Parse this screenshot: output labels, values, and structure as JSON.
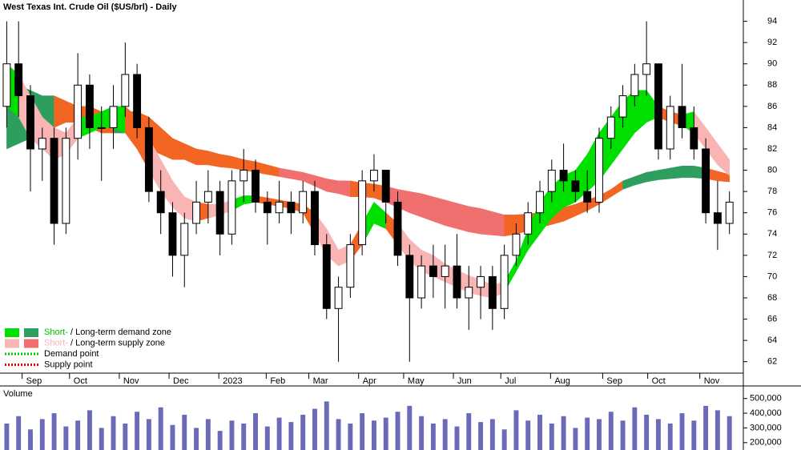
{
  "chart_data": {
    "type": "candlestick",
    "title": "West Texas Int. Crude Oil ($US/brl) - Daily",
    "volume_label": "Volume",
    "xlim": [
      0,
      312
    ],
    "xticks": [
      {
        "value": 9,
        "label": "Sep"
      },
      {
        "value": 29,
        "label": "Oct"
      },
      {
        "value": 50,
        "label": "Nov"
      },
      {
        "value": 71,
        "label": "Dec"
      },
      {
        "value": 92,
        "label": "2023"
      },
      {
        "value": 112,
        "label": "Feb"
      },
      {
        "value": 130,
        "label": "Mar"
      },
      {
        "value": 151,
        "label": "Apr"
      },
      {
        "value": 170,
        "label": "May"
      },
      {
        "value": 191,
        "label": "Jun"
      },
      {
        "value": 211,
        "label": "Jul"
      },
      {
        "value": 232,
        "label": "Aug"
      },
      {
        "value": 254,
        "label": "Sep"
      },
      {
        "value": 273,
        "label": "Oct"
      },
      {
        "value": 295,
        "label": "Nov"
      }
    ],
    "ylim": [
      61,
      96
    ],
    "yticks": [
      62,
      64,
      66,
      68,
      70,
      72,
      74,
      76,
      78,
      80,
      82,
      84,
      86,
      88,
      90,
      92,
      94
    ],
    "vlim": [
      150000,
      580000
    ],
    "vticks": [
      {
        "value": 200000,
        "label": "200,000"
      },
      {
        "value": 300000,
        "label": "300,000"
      },
      {
        "value": 400000,
        "label": "400,000"
      },
      {
        "value": 500000,
        "label": "500,000"
      }
    ],
    "up_color": "#ffffff",
    "down_color": "#000000",
    "volume_color": "#6a6ab8",
    "x": [
      2.5,
      7.5,
      12.5,
      17.5,
      22.5,
      27.5,
      32.5,
      37.5,
      42.5,
      47.5,
      52.5,
      57.5,
      62.5,
      67.5,
      72.5,
      77.5,
      82.5,
      87.5,
      92.5,
      97.5,
      102.5,
      107.5,
      112.5,
      117.5,
      122.5,
      127.5,
      132.5,
      137.5,
      142.5,
      147.5,
      152.5,
      157.5,
      162.5,
      167.5,
      172.5,
      177.5,
      182.5,
      187.5,
      192.5,
      197.5,
      202.5,
      207.5,
      212.5,
      217.5,
      222.5,
      227.5,
      232.5,
      237.5,
      242.5,
      247.5,
      252.5,
      257.5,
      262.5,
      267.5,
      272.5,
      277.5,
      282.5,
      287.5,
      292.5,
      297.5,
      302.5,
      307.5
    ],
    "open": [
      86,
      90,
      87,
      82,
      83,
      75,
      83,
      88,
      84,
      84,
      86,
      89,
      84,
      78,
      76,
      72,
      75,
      77,
      78,
      74,
      79,
      80,
      77,
      76,
      77,
      76,
      78,
      73,
      67,
      69,
      73,
      79,
      80,
      77,
      72,
      68,
      71,
      70,
      71,
      68,
      69,
      70,
      67,
      72,
      74,
      76,
      78,
      80,
      79,
      78,
      77,
      83,
      85,
      87,
      89,
      90,
      82,
      86,
      84,
      82,
      76,
      75
    ],
    "high": [
      94,
      94,
      88,
      84,
      84,
      84,
      91,
      89,
      86,
      88,
      92,
      90,
      85,
      80,
      77,
      76,
      79,
      80,
      79,
      80,
      82,
      81,
      78,
      79,
      78,
      79,
      79,
      74,
      70,
      74,
      80,
      81.5,
      80,
      78,
      73,
      72,
      73,
      73,
      74,
      71,
      71,
      71,
      73,
      75,
      77,
      79,
      81,
      82.5,
      80,
      80,
      84,
      86,
      88,
      90,
      94,
      90,
      87,
      90,
      86,
      83,
      79,
      78
    ],
    "low": [
      84,
      85,
      78,
      79,
      73,
      74,
      81,
      82,
      79,
      82,
      85,
      83,
      77,
      74,
      70,
      69,
      74,
      75,
      72,
      73,
      77,
      76,
      73,
      75,
      74,
      75,
      72,
      66,
      62,
      68,
      72,
      78,
      75,
      71,
      62,
      67,
      68,
      67,
      67,
      65,
      66,
      65,
      66,
      71,
      73,
      75,
      77,
      78,
      77,
      76,
      76,
      82,
      84,
      86,
      87,
      81,
      81,
      83,
      81,
      75,
      72.5,
      74
    ],
    "close": [
      90,
      87,
      82,
      83,
      75,
      83,
      88,
      84,
      84,
      86,
      89,
      84,
      78,
      76,
      72,
      75,
      77,
      78,
      74,
      79,
      80,
      77,
      76,
      77,
      76,
      78,
      73,
      67,
      69,
      73,
      79,
      80,
      77,
      72,
      68,
      71,
      70,
      71,
      68,
      69,
      70,
      67,
      72,
      74,
      76,
      78,
      80,
      79,
      78,
      77,
      83,
      85,
      87,
      89,
      90,
      82,
      86,
      84,
      82,
      76,
      75,
      77
    ],
    "volume": [
      330000,
      380000,
      290000,
      360000,
      400000,
      310000,
      350000,
      420000,
      300000,
      380000,
      330000,
      410000,
      360000,
      440000,
      320000,
      390000,
      300000,
      360000,
      280000,
      350000,
      330000,
      400000,
      310000,
      370000,
      340000,
      390000,
      430000,
      480000,
      360000,
      330000,
      400000,
      350000,
      370000,
      410000,
      450000,
      380000,
      330000,
      360000,
      310000,
      400000,
      340000,
      360000,
      290000,
      420000,
      350000,
      390000,
      330000,
      380000,
      300000,
      370000,
      360000,
      410000,
      350000,
      440000,
      390000,
      360000,
      330000,
      400000,
      350000,
      450000,
      420000,
      380000
    ],
    "zones": [
      {
        "upper": [
          89,
          88,
          87.5,
          87,
          87,
          86.5,
          86,
          86,
          85.5,
          85.5,
          85.5,
          85.5,
          85,
          84,
          83,
          82.5,
          82,
          81.8,
          81.5,
          81.3,
          81,
          80.8,
          80.5,
          80.2,
          80,
          79.8,
          79.5,
          79.2,
          79,
          79,
          78.8,
          78.7,
          78.5,
          78.2,
          78,
          77.8,
          77.5,
          77.2,
          76.9,
          76.6,
          76.4,
          76.1,
          75.8,
          75.8,
          75.9,
          76,
          76.2,
          76.5,
          76.8,
          77.2,
          77.6,
          78.2,
          79,
          79.4,
          79.8,
          80,
          80.2,
          80.4,
          80.4,
          80.2,
          79.9,
          79.6
        ],
        "lower": [
          82,
          82.5,
          83,
          83.5,
          84,
          84.5,
          84.5,
          84,
          83.5,
          83.5,
          83.5,
          83,
          82,
          81.5,
          81,
          81,
          80.5,
          80.5,
          80.3,
          80.2,
          80,
          79.8,
          79.6,
          79.4,
          79.2,
          79,
          78.5,
          78,
          77.8,
          77.5,
          77.5,
          77.4,
          77,
          76.5,
          76,
          75.6,
          75.2,
          74.8,
          74.5,
          74.2,
          74,
          73.9,
          73.8,
          74,
          74.3,
          74.6,
          74.9,
          75.2,
          75.7,
          76.2,
          76.8,
          77.5,
          78.2,
          78.6,
          78.9,
          79.1,
          79.2,
          79.3,
          79.3,
          79.2,
          79,
          78.9
        ],
        "colors": [
          "#2e9e5e",
          "#2e9e5e",
          "#2e9e5e",
          "#2e9e5e",
          "#f26522",
          "#f26522",
          "#f26522",
          "#f26522",
          "#f26522",
          "#2e9e5e",
          "#2e9e5e",
          "#f26522",
          "#f26522",
          "#f26522",
          "#f26522",
          "#f26522",
          "#f26522",
          "#f26522",
          "#f26522",
          "#f26522",
          "#f26522",
          "#f26522",
          "#f26522",
          "#f07070",
          "#f07070",
          "#f07070",
          "#f07070",
          "#f07070",
          "#f07070",
          "#f26522",
          "#f26522",
          "#f26522",
          "#f07070",
          "#f07070",
          "#f07070",
          "#f07070",
          "#f07070",
          "#f07070",
          "#f07070",
          "#f07070",
          "#f07070",
          "#f07070",
          "#f26522",
          "#f26522",
          "#f26522",
          "#f26522",
          "#f26522",
          "#f26522",
          "#f26522",
          "#f26522",
          "#f26522",
          "#f26522",
          "#2e9e5e",
          "#2e9e5e",
          "#2e9e5e",
          "#2e9e5e",
          "#2e9e5e",
          "#2e9e5e",
          "#2e9e5e",
          "#f26522",
          "#f26522",
          "#f26522"
        ]
      },
      {
        "upper": [
          90,
          89,
          87,
          85,
          84,
          83.5,
          85,
          85,
          85.5,
          86,
          86,
          85,
          83,
          81,
          79,
          77.5,
          77,
          76.8,
          76.8,
          77.2,
          77.6,
          77.6,
          77.4,
          77.2,
          77,
          76.8,
          76,
          74.5,
          72.5,
          73,
          75,
          77,
          76,
          75,
          73.5,
          72.5,
          72,
          71.2,
          70.6,
          70.1,
          69.7,
          69.2,
          69.5,
          71.5,
          74.5,
          77,
          78.5,
          79.5,
          80,
          81.5,
          83.5,
          85,
          86.5,
          87.5,
          87.5,
          86,
          85.5,
          85.2,
          85.5,
          84,
          82.5,
          81
        ],
        "lower": [
          86,
          85,
          83,
          82,
          81,
          81.5,
          83,
          83.5,
          84,
          84,
          83.5,
          82,
          80,
          78,
          76.5,
          75.5,
          75.2,
          75.5,
          75.8,
          76.2,
          76.8,
          77,
          76.8,
          76.6,
          76.4,
          76,
          74,
          72,
          71,
          71.5,
          73,
          75,
          74.5,
          73,
          71.5,
          70.5,
          70,
          69.5,
          69,
          68.5,
          68.2,
          68,
          68.5,
          70.5,
          72.5,
          74,
          75.5,
          76.5,
          77,
          78,
          79,
          80.5,
          82,
          83.5,
          84.5,
          85,
          84.5,
          84.2,
          83.5,
          82,
          80.5,
          79.5
        ],
        "colors": [
          "#00e000",
          "#f9b4b4",
          "#f9b4b4",
          "#f9b4b4",
          "#f9b4b4",
          "#f9b4b4",
          "#00e000",
          "#00e000",
          "#00e000",
          "#00e000",
          "#f26522",
          "#f26522",
          "#f9b4b4",
          "#f9b4b4",
          "#f9b4b4",
          "#f9b4b4",
          "#f26522",
          "#f9b4b4",
          "#f9b4b4",
          "#00e000",
          "#00e000",
          "#f26522",
          "#f26522",
          "#f26522",
          "#f26522",
          "#f26522",
          "#f9b4b4",
          "#f9b4b4",
          "#f9b4b4",
          "#f26522",
          "#00e000",
          "#00e000",
          "#f26522",
          "#f9b4b4",
          "#f9b4b4",
          "#f9b4b4",
          "#f9b4b4",
          "#f9b4b4",
          "#f9b4b4",
          "#f9b4b4",
          "#f9b4b4",
          "#f9b4b4",
          "#00e000",
          "#00e000",
          "#00e000",
          "#00e000",
          "#00e000",
          "#00e000",
          "#00e000",
          "#00e000",
          "#00e000",
          "#00e000",
          "#00e000",
          "#00e000",
          "#00e000",
          "#f26522",
          "#f26522",
          "#00e000",
          "#f9b4b4",
          "#f9b4b4",
          "#f9b4b4",
          "#f9b4b4"
        ]
      }
    ],
    "legend": [
      {
        "kind": "swatch",
        "colors": [
          "#00e000",
          "#2e9e5e"
        ],
        "parts": [
          {
            "text": "Short-",
            "color": "#00c000"
          },
          {
            "text": " / ",
            "color": "#000000"
          },
          {
            "text": "Long-term demand zone",
            "color": "#000000"
          }
        ]
      },
      {
        "kind": "swatch",
        "colors": [
          "#f9b4b4",
          "#f07070"
        ],
        "parts": [
          {
            "text": "Short-",
            "color": "#f9b4b4"
          },
          {
            "text": " / ",
            "color": "#000000"
          },
          {
            "text": "Long-term supply zone",
            "color": "#000000"
          }
        ]
      },
      {
        "kind": "dotted",
        "colors": [
          "#00cc00"
        ],
        "parts": [
          {
            "text": "Demand point",
            "color": "#000000"
          }
        ]
      },
      {
        "kind": "dotted",
        "colors": [
          "#dd0000"
        ],
        "parts": [
          {
            "text": "Supply point",
            "color": "#000000"
          }
        ]
      }
    ]
  }
}
